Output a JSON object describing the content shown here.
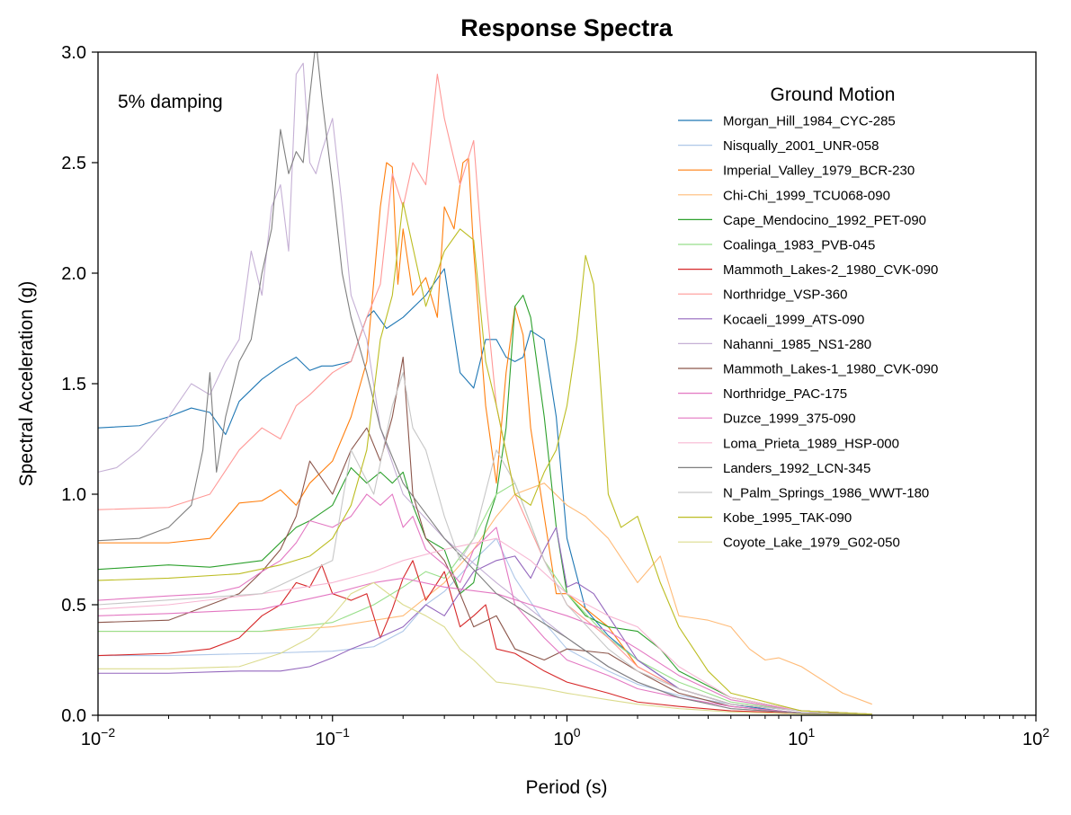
{
  "chart_data": {
    "type": "line",
    "title": "Response Spectra",
    "xlabel": "Period (s)",
    "ylabel": "Spectral Acceleration (g)",
    "x_scale": "log",
    "xlim": [
      0.01,
      100
    ],
    "ylim": [
      0,
      3.0
    ],
    "x_ticks": [
      0.01,
      0.1,
      1,
      10,
      100
    ],
    "x_tick_base": "10",
    "x_tick_exponents": [
      "−2",
      "−1",
      "0",
      "1",
      "2"
    ],
    "y_ticks": [
      0,
      0.5,
      1.0,
      1.5,
      2.0,
      2.5,
      3.0
    ],
    "y_tick_labels": [
      "0.0",
      "0.5",
      "1.0",
      "1.5",
      "2.0",
      "2.5",
      "3.0"
    ],
    "grid": false,
    "annotation": "5% damping",
    "legend_title": "Ground Motion",
    "legend_position": "upper-right",
    "series": [
      {
        "name": "Morgan_Hill_1984_CYC-285",
        "color": "#1f77b4",
        "x": [
          0.01,
          0.015,
          0.02,
          0.025,
          0.03,
          0.035,
          0.04,
          0.05,
          0.06,
          0.07,
          0.08,
          0.09,
          0.1,
          0.12,
          0.14,
          0.15,
          0.17,
          0.2,
          0.25,
          0.3,
          0.35,
          0.4,
          0.45,
          0.5,
          0.55,
          0.6,
          0.65,
          0.7,
          0.8,
          0.9,
          1.0,
          1.2,
          1.5,
          2,
          3,
          5,
          8,
          10,
          15,
          20
        ],
        "y": [
          1.3,
          1.31,
          1.35,
          1.39,
          1.37,
          1.27,
          1.42,
          1.52,
          1.58,
          1.62,
          1.56,
          1.58,
          1.58,
          1.6,
          1.8,
          1.83,
          1.75,
          1.8,
          1.9,
          2.02,
          1.55,
          1.48,
          1.7,
          1.7,
          1.62,
          1.6,
          1.62,
          1.74,
          1.7,
          1.35,
          0.8,
          0.48,
          0.36,
          0.25,
          0.12,
          0.05,
          0.02,
          0.01,
          0.005,
          0.003
        ]
      },
      {
        "name": "Nisqually_2001_UNR-058",
        "color": "#aec7e8",
        "x": [
          0.01,
          0.02,
          0.05,
          0.1,
          0.15,
          0.2,
          0.25,
          0.3,
          0.4,
          0.5,
          0.6,
          0.8,
          1.0,
          1.5,
          2,
          3,
          5,
          10,
          20
        ],
        "y": [
          0.27,
          0.27,
          0.28,
          0.29,
          0.31,
          0.38,
          0.5,
          0.56,
          0.7,
          0.8,
          0.62,
          0.42,
          0.3,
          0.2,
          0.14,
          0.09,
          0.05,
          0.02,
          0.005
        ]
      },
      {
        "name": "Imperial_Valley_1979_BCR-230",
        "color": "#ff7f0e",
        "x": [
          0.01,
          0.02,
          0.03,
          0.04,
          0.05,
          0.06,
          0.07,
          0.08,
          0.1,
          0.12,
          0.14,
          0.16,
          0.17,
          0.18,
          0.19,
          0.2,
          0.22,
          0.25,
          0.28,
          0.3,
          0.33,
          0.36,
          0.38,
          0.4,
          0.45,
          0.5,
          0.55,
          0.6,
          0.65,
          0.7,
          0.8,
          0.9,
          1.0,
          1.5,
          2,
          3,
          5,
          10,
          20
        ],
        "y": [
          0.78,
          0.78,
          0.8,
          0.96,
          0.97,
          1.02,
          0.95,
          1.05,
          1.15,
          1.35,
          1.6,
          2.3,
          2.5,
          2.48,
          1.95,
          2.2,
          1.9,
          1.98,
          1.8,
          2.3,
          2.2,
          2.5,
          2.52,
          2.1,
          1.4,
          1.05,
          1.55,
          1.85,
          1.72,
          1.3,
          0.9,
          0.55,
          0.55,
          0.4,
          0.22,
          0.12,
          0.05,
          0.02,
          0.005
        ]
      },
      {
        "name": "Chi-Chi_1999_TCU068-090",
        "color": "#ffbb78",
        "x": [
          0.01,
          0.05,
          0.1,
          0.2,
          0.3,
          0.4,
          0.5,
          0.6,
          0.8,
          1.0,
          1.2,
          1.5,
          2,
          2.5,
          3,
          4,
          5,
          6,
          7,
          8,
          10,
          15,
          20
        ],
        "y": [
          0.38,
          0.38,
          0.4,
          0.45,
          0.6,
          0.75,
          0.9,
          1.0,
          1.05,
          0.95,
          0.9,
          0.8,
          0.6,
          0.72,
          0.45,
          0.43,
          0.4,
          0.3,
          0.25,
          0.26,
          0.22,
          0.1,
          0.05
        ]
      },
      {
        "name": "Cape_Mendocino_1992_PET-090",
        "color": "#2ca02c",
        "x": [
          0.01,
          0.02,
          0.03,
          0.05,
          0.07,
          0.08,
          0.1,
          0.12,
          0.14,
          0.16,
          0.18,
          0.2,
          0.22,
          0.25,
          0.3,
          0.35,
          0.4,
          0.45,
          0.5,
          0.55,
          0.6,
          0.65,
          0.7,
          0.8,
          0.9,
          1.0,
          1.2,
          1.5,
          2,
          2.5,
          3,
          5,
          10,
          20
        ],
        "y": [
          0.66,
          0.68,
          0.67,
          0.7,
          0.85,
          0.88,
          0.95,
          1.12,
          1.05,
          1.1,
          1.05,
          1.1,
          0.95,
          0.8,
          0.75,
          0.55,
          0.6,
          0.85,
          1.0,
          1.3,
          1.85,
          1.9,
          1.8,
          1.35,
          0.85,
          0.55,
          0.45,
          0.4,
          0.38,
          0.3,
          0.2,
          0.08,
          0.02,
          0.005
        ]
      },
      {
        "name": "Coalinga_1983_PVB-045",
        "color": "#98df8a",
        "x": [
          0.01,
          0.05,
          0.1,
          0.15,
          0.2,
          0.25,
          0.3,
          0.4,
          0.5,
          0.6,
          0.8,
          1.0,
          1.5,
          2,
          3,
          5,
          10,
          20
        ],
        "y": [
          0.38,
          0.38,
          0.42,
          0.5,
          0.58,
          0.65,
          0.62,
          0.8,
          1.0,
          1.05,
          0.7,
          0.55,
          0.35,
          0.25,
          0.15,
          0.06,
          0.02,
          0.005
        ]
      },
      {
        "name": "Mammoth_Lakes-2_1980_CVK-090",
        "color": "#d62728",
        "x": [
          0.01,
          0.02,
          0.03,
          0.04,
          0.05,
          0.06,
          0.07,
          0.08,
          0.09,
          0.1,
          0.12,
          0.14,
          0.16,
          0.18,
          0.2,
          0.22,
          0.25,
          0.28,
          0.3,
          0.35,
          0.4,
          0.45,
          0.5,
          0.6,
          0.8,
          1.0,
          1.5,
          2,
          3,
          5,
          10,
          20
        ],
        "y": [
          0.27,
          0.28,
          0.3,
          0.35,
          0.45,
          0.5,
          0.6,
          0.58,
          0.68,
          0.55,
          0.52,
          0.55,
          0.35,
          0.48,
          0.62,
          0.7,
          0.52,
          0.6,
          0.65,
          0.4,
          0.45,
          0.5,
          0.3,
          0.28,
          0.2,
          0.15,
          0.1,
          0.06,
          0.04,
          0.02,
          0.01,
          0.003
        ]
      },
      {
        "name": "Northridge_VSP-360",
        "color": "#ff9896",
        "x": [
          0.01,
          0.02,
          0.03,
          0.04,
          0.05,
          0.06,
          0.07,
          0.08,
          0.1,
          0.12,
          0.14,
          0.16,
          0.18,
          0.2,
          0.22,
          0.25,
          0.28,
          0.3,
          0.35,
          0.4,
          0.45,
          0.5,
          0.6,
          0.8,
          1.0,
          1.5,
          2,
          3,
          5,
          10,
          20
        ],
        "y": [
          0.93,
          0.94,
          1.0,
          1.2,
          1.3,
          1.25,
          1.4,
          1.45,
          1.55,
          1.6,
          1.8,
          1.95,
          2.45,
          2.3,
          2.5,
          2.4,
          2.9,
          2.7,
          2.4,
          2.6,
          1.9,
          1.4,
          1.0,
          0.7,
          0.5,
          0.35,
          0.22,
          0.12,
          0.05,
          0.02,
          0.005
        ]
      },
      {
        "name": "Kocaeli_1999_ATS-090",
        "color": "#9467bd",
        "x": [
          0.01,
          0.02,
          0.04,
          0.06,
          0.08,
          0.1,
          0.12,
          0.15,
          0.2,
          0.25,
          0.3,
          0.4,
          0.5,
          0.6,
          0.7,
          0.8,
          0.9,
          1.0,
          1.1,
          1.3,
          1.5,
          2,
          3,
          5,
          10,
          20
        ],
        "y": [
          0.19,
          0.19,
          0.2,
          0.2,
          0.22,
          0.26,
          0.3,
          0.34,
          0.4,
          0.5,
          0.45,
          0.65,
          0.7,
          0.72,
          0.62,
          0.75,
          0.85,
          0.58,
          0.6,
          0.55,
          0.45,
          0.25,
          0.12,
          0.05,
          0.02,
          0.005
        ]
      },
      {
        "name": "Nahanni_1985_NS1-280",
        "color": "#c5b0d5",
        "x": [
          0.01,
          0.012,
          0.015,
          0.02,
          0.025,
          0.03,
          0.035,
          0.04,
          0.045,
          0.05,
          0.055,
          0.06,
          0.065,
          0.07,
          0.075,
          0.08,
          0.085,
          0.09,
          0.1,
          0.11,
          0.12,
          0.14,
          0.16,
          0.2,
          0.3,
          0.5,
          1.0,
          1.5,
          2,
          3,
          5,
          10,
          20
        ],
        "y": [
          1.1,
          1.12,
          1.2,
          1.35,
          1.5,
          1.45,
          1.6,
          1.7,
          2.1,
          1.9,
          2.3,
          2.4,
          2.1,
          2.9,
          2.95,
          2.5,
          2.45,
          2.55,
          2.7,
          2.3,
          1.9,
          1.7,
          1.3,
          1.0,
          0.8,
          0.6,
          0.35,
          0.22,
          0.15,
          0.08,
          0.03,
          0.01,
          0.003
        ]
      },
      {
        "name": "Mammoth_Lakes-1_1980_CVK-090",
        "color": "#8c564b",
        "x": [
          0.01,
          0.02,
          0.03,
          0.04,
          0.05,
          0.06,
          0.07,
          0.08,
          0.1,
          0.12,
          0.14,
          0.16,
          0.18,
          0.2,
          0.22,
          0.25,
          0.3,
          0.35,
          0.4,
          0.5,
          0.6,
          0.8,
          1.0,
          1.5,
          2,
          3,
          5,
          10,
          20
        ],
        "y": [
          0.42,
          0.43,
          0.5,
          0.55,
          0.65,
          0.75,
          0.9,
          1.15,
          1.0,
          1.2,
          1.3,
          1.15,
          1.35,
          1.62,
          1.0,
          0.8,
          0.7,
          0.55,
          0.4,
          0.45,
          0.3,
          0.25,
          0.3,
          0.28,
          0.2,
          0.1,
          0.04,
          0.01,
          0.003
        ]
      },
      {
        "name": "Northridge_PAC-175",
        "color": "#e377c2",
        "x": [
          0.01,
          0.02,
          0.03,
          0.04,
          0.05,
          0.06,
          0.07,
          0.08,
          0.1,
          0.12,
          0.14,
          0.16,
          0.18,
          0.2,
          0.22,
          0.25,
          0.3,
          0.35,
          0.4,
          0.5,
          0.6,
          0.8,
          1.0,
          1.5,
          2,
          3,
          5,
          10,
          20
        ],
        "y": [
          0.52,
          0.54,
          0.55,
          0.58,
          0.65,
          0.7,
          0.78,
          0.88,
          0.85,
          0.9,
          1.0,
          0.95,
          1.0,
          0.85,
          0.9,
          0.75,
          0.68,
          0.6,
          0.75,
          0.85,
          0.5,
          0.35,
          0.25,
          0.18,
          0.12,
          0.08,
          0.04,
          0.01,
          0.003
        ]
      },
      {
        "name": "Duzce_1999_375-090",
        "color": "#e377c2",
        "x": [
          0.01,
          0.02,
          0.05,
          0.1,
          0.15,
          0.2,
          0.3,
          0.5,
          0.7,
          1.0,
          1.5,
          2,
          3,
          5,
          10,
          20
        ],
        "y": [
          0.45,
          0.46,
          0.48,
          0.55,
          0.6,
          0.62,
          0.58,
          0.55,
          0.5,
          0.45,
          0.38,
          0.3,
          0.18,
          0.07,
          0.02,
          0.005
        ]
      },
      {
        "name": "Loma_Prieta_1989_HSP-000",
        "color": "#f7b6d2",
        "x": [
          0.01,
          0.02,
          0.05,
          0.1,
          0.15,
          0.2,
          0.3,
          0.5,
          0.7,
          1.0,
          1.5,
          2,
          2.5,
          3,
          5,
          10,
          20
        ],
        "y": [
          0.48,
          0.5,
          0.55,
          0.6,
          0.65,
          0.7,
          0.75,
          0.8,
          0.7,
          0.55,
          0.45,
          0.4,
          0.3,
          0.22,
          0.08,
          0.02,
          0.005
        ]
      },
      {
        "name": "Landers_1992_LCN-345",
        "color": "#7f7f7f",
        "x": [
          0.01,
          0.015,
          0.02,
          0.025,
          0.028,
          0.03,
          0.032,
          0.035,
          0.04,
          0.045,
          0.05,
          0.055,
          0.06,
          0.065,
          0.07,
          0.075,
          0.08,
          0.085,
          0.09,
          0.1,
          0.11,
          0.12,
          0.14,
          0.16,
          0.2,
          0.3,
          0.5,
          1.0,
          1.5,
          2,
          3,
          5,
          10,
          20
        ],
        "y": [
          0.79,
          0.8,
          0.85,
          0.95,
          1.2,
          1.55,
          1.1,
          1.35,
          1.6,
          1.7,
          2.0,
          2.2,
          2.65,
          2.45,
          2.55,
          2.5,
          2.8,
          3.05,
          2.8,
          2.4,
          2.0,
          1.8,
          1.55,
          1.3,
          1.05,
          0.8,
          0.55,
          0.35,
          0.22,
          0.15,
          0.08,
          0.03,
          0.01,
          0.003
        ]
      },
      {
        "name": "N_Palm_Springs_1986_WWT-180",
        "color": "#c7c7c7",
        "x": [
          0.01,
          0.05,
          0.1,
          0.12,
          0.15,
          0.18,
          0.2,
          0.22,
          0.25,
          0.3,
          0.35,
          0.4,
          0.5,
          0.6,
          0.8,
          1.0,
          1.5,
          2,
          3,
          5,
          10,
          20
        ],
        "y": [
          0.5,
          0.55,
          0.7,
          1.2,
          1.0,
          1.4,
          1.55,
          1.3,
          1.2,
          0.9,
          0.7,
          0.8,
          1.2,
          1.05,
          0.7,
          0.5,
          0.3,
          0.2,
          0.12,
          0.05,
          0.02,
          0.005
        ]
      },
      {
        "name": "Kobe_1995_TAK-090",
        "color": "#bcbd22",
        "x": [
          0.01,
          0.02,
          0.04,
          0.06,
          0.08,
          0.1,
          0.12,
          0.14,
          0.16,
          0.18,
          0.2,
          0.25,
          0.3,
          0.35,
          0.4,
          0.45,
          0.5,
          0.6,
          0.7,
          0.8,
          0.9,
          1.0,
          1.1,
          1.2,
          1.3,
          1.5,
          1.7,
          2,
          2.5,
          3,
          4,
          5,
          10,
          20
        ],
        "y": [
          0.61,
          0.62,
          0.64,
          0.68,
          0.72,
          0.8,
          0.95,
          1.2,
          1.7,
          1.9,
          2.32,
          1.85,
          2.1,
          2.2,
          2.15,
          1.6,
          1.4,
          1.0,
          0.95,
          1.1,
          1.2,
          1.4,
          1.7,
          2.08,
          1.95,
          1.0,
          0.85,
          0.9,
          0.6,
          0.4,
          0.2,
          0.1,
          0.02,
          0.005
        ]
      },
      {
        "name": "Coyote_Lake_1979_G02-050",
        "color": "#dbdb8d",
        "x": [
          0.01,
          0.02,
          0.04,
          0.06,
          0.08,
          0.1,
          0.12,
          0.15,
          0.2,
          0.25,
          0.3,
          0.35,
          0.4,
          0.5,
          0.6,
          0.8,
          1.0,
          1.5,
          2,
          3,
          5,
          10,
          20
        ],
        "y": [
          0.21,
          0.21,
          0.22,
          0.28,
          0.35,
          0.45,
          0.55,
          0.6,
          0.5,
          0.45,
          0.4,
          0.3,
          0.25,
          0.15,
          0.14,
          0.12,
          0.1,
          0.07,
          0.05,
          0.03,
          0.015,
          0.005,
          0.002
        ]
      }
    ]
  }
}
